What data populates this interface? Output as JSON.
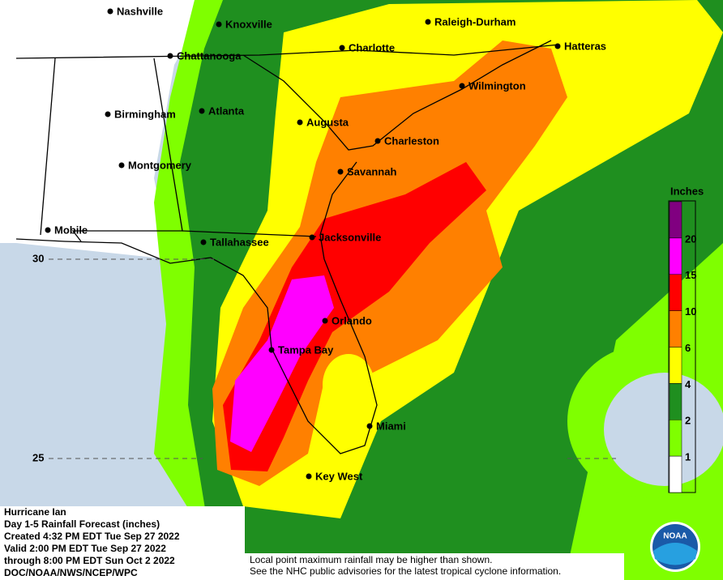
{
  "map": {
    "cities": [
      "Nashville",
      "Knoxville",
      "Raleigh-Durham",
      "Hatteras",
      "Charlotte",
      "Chattanooga",
      "Wilmington",
      "Birmingham",
      "Atlanta",
      "Augusta",
      "Charleston",
      "Montgomery",
      "Savannah",
      "Mobile",
      "Tallahassee",
      "Jacksonville",
      "Orlando",
      "Tampa Bay",
      "Miami",
      "Key West"
    ],
    "latitudes": [
      30,
      25
    ],
    "legend": {
      "title": "Inches",
      "thresholds": [
        1,
        2,
        4,
        6,
        10,
        15,
        20
      ],
      "colors": [
        "#ffffff",
        "#7fff00",
        "#1f8f1f",
        "#ffff00",
        "#ff8000",
        "#ff0000",
        "#ff00ff",
        "#800080"
      ]
    },
    "title_block": [
      "Hurricane Ian",
      "Day 1-5 Rainfall Forecast (inches)",
      "Created 4:32 PM EDT Tue Sep 27 2022",
      "Valid 2:00 PM EDT Tue Sep 27 2022",
      "through 8:00 PM EDT Sun Oct 2 2022",
      "DOC/NOAA/NWS/NCEP/WPC"
    ],
    "notes": [
      "Local point maximum rainfall may be higher than shown.",
      "See the NHC public advisories for the latest tropical cyclone information."
    ],
    "logo": "NOAA"
  }
}
